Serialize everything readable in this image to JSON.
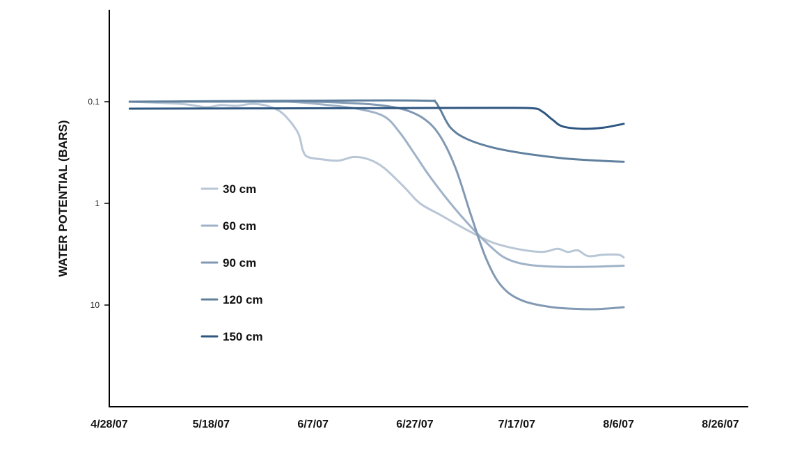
{
  "chart_data": {
    "type": "line",
    "title": "",
    "xlabel": "",
    "ylabel": "WATER POTENTIAL (BARS)",
    "y_scale": "log",
    "y_inverted": true,
    "ylim": [
      0.01,
      100
    ],
    "y_ticks": [
      {
        "value": 0.1,
        "label": "0.1"
      },
      {
        "value": 1,
        "label": "1"
      },
      {
        "value": 10,
        "label": "10"
      }
    ],
    "x_ticks": [
      "4/28/07",
      "5/18/07",
      "6/7/07",
      "6/27/07",
      "7/17/07",
      "8/6/07",
      "8/26/07"
    ],
    "x_range": [
      "4/28/07",
      "8/26/07"
    ],
    "grid": false,
    "legend_placement": "inside-left",
    "series": [
      {
        "name": "30 cm",
        "color": "#b8c6d6",
        "points": [
          [
            "5/2/07",
            0.1
          ],
          [
            "5/12/07",
            0.105
          ],
          [
            "5/17/07",
            0.113
          ],
          [
            "5/20/07",
            0.108
          ],
          [
            "5/23/07",
            0.11
          ],
          [
            "5/26/07",
            0.105
          ],
          [
            "5/29/07",
            0.11
          ],
          [
            "6/1/07",
            0.13
          ],
          [
            "6/4/07",
            0.2
          ],
          [
            "6/5/07",
            0.3
          ],
          [
            "6/6/07",
            0.35
          ],
          [
            "6/9/07",
            0.37
          ],
          [
            "6/12/07",
            0.38
          ],
          [
            "6/15/07",
            0.35
          ],
          [
            "6/18/07",
            0.37
          ],
          [
            "6/21/07",
            0.45
          ],
          [
            "6/25/07",
            0.7
          ],
          [
            "6/28/07",
            1.0
          ],
          [
            "7/2/07",
            1.3
          ],
          [
            "7/7/07",
            1.8
          ],
          [
            "7/12/07",
            2.4
          ],
          [
            "7/17/07",
            2.8
          ],
          [
            "7/22/07",
            3.0
          ],
          [
            "7/25/07",
            2.8
          ],
          [
            "7/27/07",
            3.0
          ],
          [
            "7/29/07",
            2.9
          ],
          [
            "7/31/07",
            3.3
          ],
          [
            "8/3/07",
            3.2
          ],
          [
            "8/6/07",
            3.2
          ],
          [
            "8/7/07",
            3.4
          ]
        ]
      },
      {
        "name": "60 cm",
        "color": "#9fb2c8",
        "points": [
          [
            "5/2/07",
            0.1
          ],
          [
            "5/22/07",
            0.1
          ],
          [
            "6/2/07",
            0.1
          ],
          [
            "6/10/07",
            0.108
          ],
          [
            "6/16/07",
            0.118
          ],
          [
            "6/21/07",
            0.14
          ],
          [
            "6/24/07",
            0.2
          ],
          [
            "6/27/07",
            0.33
          ],
          [
            "6/30/07",
            0.55
          ],
          [
            "7/4/07",
            1.0
          ],
          [
            "7/8/07",
            1.7
          ],
          [
            "7/12/07",
            2.7
          ],
          [
            "7/15/07",
            3.5
          ],
          [
            "7/19/07",
            4.0
          ],
          [
            "7/25/07",
            4.2
          ],
          [
            "8/1/07",
            4.2
          ],
          [
            "8/7/07",
            4.1
          ]
        ]
      },
      {
        "name": "90 cm",
        "color": "#8199b3",
        "points": [
          [
            "5/2/07",
            0.1
          ],
          [
            "5/27/07",
            0.1
          ],
          [
            "6/7/07",
            0.1
          ],
          [
            "6/14/07",
            0.103
          ],
          [
            "6/20/07",
            0.108
          ],
          [
            "6/25/07",
            0.12
          ],
          [
            "6/29/07",
            0.15
          ],
          [
            "7/2/07",
            0.22
          ],
          [
            "7/5/07",
            0.45
          ],
          [
            "7/8/07",
            1.3
          ],
          [
            "7/11/07",
            3.5
          ],
          [
            "7/14/07",
            6.5
          ],
          [
            "7/18/07",
            9.0
          ],
          [
            "7/24/07",
            10.5
          ],
          [
            "7/31/07",
            11.0
          ],
          [
            "8/4/07",
            10.8
          ],
          [
            "8/7/07",
            10.5
          ]
        ]
      },
      {
        "name": "120 cm",
        "color": "#60809e",
        "points": [
          [
            "5/2/07",
            0.1
          ],
          [
            "6/2/07",
            0.098
          ],
          [
            "6/22/07",
            0.097
          ],
          [
            "6/30/07",
            0.098
          ],
          [
            "7/1/07",
            0.1
          ],
          [
            "7/2/07",
            0.12
          ],
          [
            "7/4/07",
            0.18
          ],
          [
            "7/7/07",
            0.23
          ],
          [
            "7/12/07",
            0.28
          ],
          [
            "7/18/07",
            0.32
          ],
          [
            "7/26/07",
            0.36
          ],
          [
            "8/2/07",
            0.38
          ],
          [
            "8/7/07",
            0.39
          ]
        ]
      },
      {
        "name": "150 cm",
        "color": "#2e5680",
        "points": [
          [
            "5/2/07",
            0.117
          ],
          [
            "6/12/07",
            0.116
          ],
          [
            "7/12/07",
            0.115
          ],
          [
            "7/20/07",
            0.116
          ],
          [
            "7/22/07",
            0.125
          ],
          [
            "7/24/07",
            0.15
          ],
          [
            "7/26/07",
            0.175
          ],
          [
            "7/30/07",
            0.185
          ],
          [
            "8/3/07",
            0.18
          ],
          [
            "8/7/07",
            0.165
          ]
        ]
      }
    ]
  }
}
